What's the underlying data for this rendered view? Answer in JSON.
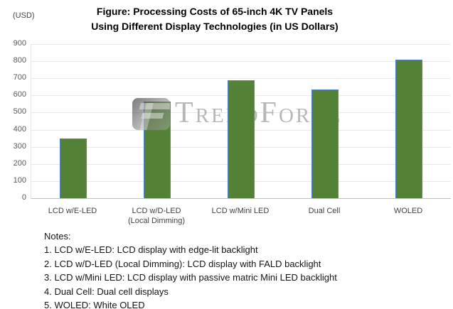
{
  "title": {
    "line1": "Figure: Processing Costs of 65-inch 4K TV Panels",
    "line2": "Using Different Display Technologies (in US Dollars)"
  },
  "y_axis_unit": "(USD)",
  "watermark": {
    "brand": "TrendForce",
    "logo": "trendforce-f-icon"
  },
  "chart_data": {
    "type": "bar",
    "title": "Figure: Processing Costs of 65-inch 4K TV Panels Using Different Display Technologies (in US Dollars)",
    "categories": [
      [
        "LCD w/E-LED"
      ],
      [
        "LCD w/D-LED",
        "(Local Dimming)"
      ],
      [
        "LCD w/Mini LED"
      ],
      [
        "Dual Cell"
      ],
      [
        "WOLED"
      ]
    ],
    "values": [
      350,
      565,
      690,
      635,
      810
    ],
    "xlabel": "",
    "ylabel": "(USD)",
    "ylim": [
      0,
      900
    ],
    "ytick_step": 100,
    "grid": true,
    "legend_position": "none",
    "bar_color": "#538135",
    "bar_border_color": "#4f81c7",
    "gridline_color": "#e8e8e8"
  },
  "notes": {
    "heading": "Notes:",
    "items": [
      "1. LCD w/E-LED: LCD display with edge-lit backlight",
      "2. LCD w/D-LED (Local Dimming): LCD display with FALD backlight",
      "3. LCD w/Mini LED: LCD display with passive matric Mini LED backlight",
      "4. Dual Cell: Dual cell displays",
      "5. WOLED: White OLED"
    ]
  }
}
